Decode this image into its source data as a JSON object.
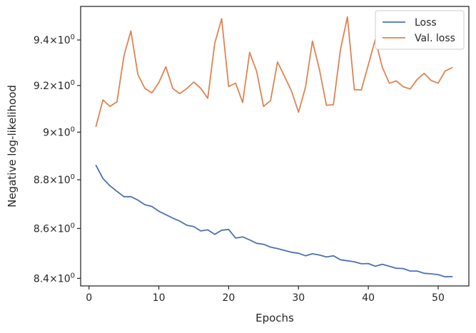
{
  "chart_data": {
    "type": "line",
    "xlabel": "Epochs",
    "ylabel": "Negative log-likelihood",
    "yscale": "log",
    "xlim": [
      -1.2,
      54.4
    ],
    "ylim": [
      8.37,
      9.55
    ],
    "xticks": [
      {
        "value": 0,
        "label": "0"
      },
      {
        "value": 10,
        "label": "10"
      },
      {
        "value": 20,
        "label": "20"
      },
      {
        "value": 30,
        "label": "30"
      },
      {
        "value": 40,
        "label": "40"
      },
      {
        "value": 50,
        "label": "50"
      }
    ],
    "yticks": [
      {
        "value": 8.4,
        "mantissa": "8.4",
        "base": "10",
        "exp": "0"
      },
      {
        "value": 8.6,
        "mantissa": "8.6",
        "base": "10",
        "exp": "0"
      },
      {
        "value": 8.8,
        "mantissa": "8.8",
        "base": "10",
        "exp": "0"
      },
      {
        "value": 9.0,
        "mantissa": "9",
        "base": "10",
        "exp": "0"
      },
      {
        "value": 9.2,
        "mantissa": "9.2",
        "base": "10",
        "exp": "0"
      },
      {
        "value": 9.4,
        "mantissa": "9.4",
        "base": "10",
        "exp": "0"
      }
    ],
    "x": [
      1,
      2,
      3,
      4,
      5,
      6,
      7,
      8,
      9,
      10,
      11,
      12,
      13,
      14,
      15,
      16,
      17,
      18,
      19,
      20,
      21,
      22,
      23,
      24,
      25,
      26,
      27,
      28,
      29,
      30,
      31,
      32,
      33,
      34,
      35,
      36,
      37,
      38,
      39,
      40,
      41,
      42,
      43,
      44,
      45,
      46,
      47,
      48,
      49,
      50,
      51,
      52
    ],
    "legend_position": "top-right",
    "series": [
      {
        "name": "Loss",
        "color": "#4c72b0",
        "values": [
          8.86,
          8.805,
          8.775,
          8.752,
          8.73,
          8.73,
          8.716,
          8.697,
          8.69,
          8.67,
          8.656,
          8.642,
          8.63,
          8.613,
          8.608,
          8.59,
          8.595,
          8.576,
          8.593,
          8.596,
          8.561,
          8.566,
          8.554,
          8.54,
          8.536,
          8.525,
          8.519,
          8.511,
          8.504,
          8.5,
          8.49,
          8.498,
          8.493,
          8.485,
          8.49,
          8.474,
          8.47,
          8.466,
          8.458,
          8.459,
          8.448,
          8.456,
          8.448,
          8.44,
          8.439,
          8.429,
          8.429,
          8.42,
          8.418,
          8.415,
          8.406,
          8.407
        ]
      },
      {
        "name": "Val. loss",
        "color": "#dd8452",
        "values": [
          9.025,
          9.138,
          9.11,
          9.13,
          9.33,
          9.44,
          9.248,
          9.188,
          9.168,
          9.213,
          9.282,
          9.187,
          9.165,
          9.187,
          9.215,
          9.188,
          9.145,
          9.385,
          9.495,
          9.196,
          9.21,
          9.127,
          9.345,
          9.262,
          9.11,
          9.135,
          9.303,
          9.24,
          9.176,
          9.085,
          9.193,
          9.395,
          9.27,
          9.115,
          9.117,
          9.356,
          9.503,
          9.182,
          9.181,
          9.29,
          9.402,
          9.28,
          9.21,
          9.22,
          9.195,
          9.185,
          9.227,
          9.253,
          9.222,
          9.21,
          9.263,
          9.278
        ]
      }
    ]
  }
}
